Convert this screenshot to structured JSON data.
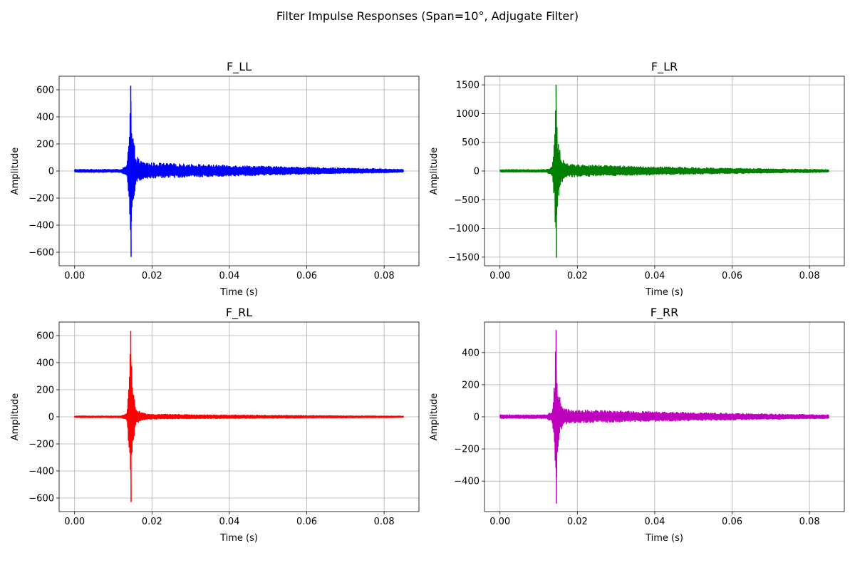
{
  "figure": {
    "title": "Filter Impulse Responses (Span=10°, Adjugate Filter)"
  },
  "chart_data": [
    {
      "type": "line",
      "title": "F_LL",
      "xlabel": "Time (s)",
      "ylabel": "Amplitude",
      "color": "#0000ff",
      "xlim": [
        -0.004,
        0.089
      ],
      "ylim": [
        -700,
        700
      ],
      "xticks": [
        0.0,
        0.02,
        0.04,
        0.06,
        0.08
      ],
      "xtick_labels": [
        "0.00",
        "0.02",
        "0.04",
        "0.06",
        "0.08"
      ],
      "yticks": [
        -600,
        -400,
        -200,
        0,
        200,
        400,
        600
      ],
      "ytick_labels": [
        "−600",
        "−400",
        "−200",
        "0",
        "200",
        "400",
        "600"
      ],
      "grid": true,
      "envelope": {
        "x": [
          0.0,
          0.012,
          0.0135,
          0.0142,
          0.0145,
          0.0148,
          0.0155,
          0.016,
          0.017,
          0.018,
          0.02,
          0.025,
          0.03,
          0.04,
          0.05,
          0.06,
          0.07,
          0.08,
          0.085
        ],
        "upper": [
          12,
          12,
          40,
          300,
          630,
          300,
          180,
          110,
          75,
          65,
          60,
          55,
          50,
          42,
          35,
          28,
          22,
          16,
          12
        ],
        "lower": [
          -10,
          -10,
          -40,
          -300,
          -635,
          -300,
          -160,
          -95,
          -70,
          -60,
          -55,
          -50,
          -45,
          -38,
          -30,
          -24,
          -18,
          -13,
          -10
        ]
      }
    },
    {
      "type": "line",
      "title": "F_LR",
      "xlabel": "Time (s)",
      "ylabel": "Amplitude",
      "color": "#008000",
      "xlim": [
        -0.004,
        0.089
      ],
      "ylim": [
        -1650,
        1650
      ],
      "xticks": [
        0.0,
        0.02,
        0.04,
        0.06,
        0.08
      ],
      "xtick_labels": [
        "0.00",
        "0.02",
        "0.04",
        "0.06",
        "0.08"
      ],
      "yticks": [
        -1500,
        -1000,
        -500,
        0,
        500,
        1000,
        1500
      ],
      "ytick_labels": [
        "−1500",
        "−1000",
        "−500",
        "0",
        "500",
        "1000",
        "1500"
      ],
      "grid": true,
      "envelope": {
        "x": [
          0.0,
          0.012,
          0.0135,
          0.0142,
          0.0145,
          0.0148,
          0.0155,
          0.016,
          0.017,
          0.018,
          0.02,
          0.025,
          0.03,
          0.04,
          0.05,
          0.06,
          0.07,
          0.08,
          0.085
        ],
        "upper": [
          25,
          25,
          80,
          700,
          1500,
          700,
          350,
          220,
          140,
          120,
          110,
          100,
          90,
          75,
          60,
          48,
          38,
          30,
          25
        ],
        "lower": [
          -20,
          -20,
          -80,
          -700,
          -1510,
          -700,
          -300,
          -200,
          -130,
          -110,
          -100,
          -90,
          -80,
          -68,
          -55,
          -44,
          -34,
          -26,
          -20
        ]
      }
    },
    {
      "type": "line",
      "title": "F_RL",
      "xlabel": "Time (s)",
      "ylabel": "Amplitude",
      "color": "#ff0000",
      "xlim": [
        -0.004,
        0.089
      ],
      "ylim": [
        -700,
        700
      ],
      "xticks": [
        0.0,
        0.02,
        0.04,
        0.06,
        0.08
      ],
      "xtick_labels": [
        "0.00",
        "0.02",
        "0.04",
        "0.06",
        "0.08"
      ],
      "yticks": [
        -600,
        -400,
        -200,
        0,
        200,
        400,
        600
      ],
      "ytick_labels": [
        "−600",
        "−400",
        "−200",
        "0",
        "200",
        "400",
        "600"
      ],
      "grid": true,
      "envelope": {
        "x": [
          0.0,
          0.012,
          0.0135,
          0.0142,
          0.0145,
          0.0148,
          0.0155,
          0.016,
          0.017,
          0.018,
          0.02,
          0.025,
          0.03,
          0.04,
          0.05,
          0.06,
          0.07,
          0.08,
          0.085
        ],
        "upper": [
          6,
          6,
          25,
          300,
          635,
          300,
          120,
          60,
          35,
          25,
          20,
          18,
          16,
          13,
          11,
          9,
          7,
          6,
          5
        ],
        "lower": [
          -6,
          -6,
          -25,
          -300,
          -630,
          -300,
          -110,
          -55,
          -30,
          -22,
          -18,
          -16,
          -14,
          -12,
          -10,
          -8,
          -7,
          -6,
          -5
        ]
      }
    },
    {
      "type": "line",
      "title": "F_RR",
      "xlabel": "Time (s)",
      "ylabel": "Amplitude",
      "color": "#bf00bf",
      "xlim": [
        -0.004,
        0.089
      ],
      "ylim": [
        -590,
        590
      ],
      "xticks": [
        0.0,
        0.02,
        0.04,
        0.06,
        0.08
      ],
      "xtick_labels": [
        "0.00",
        "0.02",
        "0.04",
        "0.06",
        "0.08"
      ],
      "yticks": [
        -400,
        -200,
        0,
        200,
        400
      ],
      "ytick_labels": [
        "−400",
        "−200",
        "0",
        "200",
        "400"
      ],
      "grid": true,
      "envelope": {
        "x": [
          0.0,
          0.012,
          0.0135,
          0.0142,
          0.0145,
          0.0148,
          0.0155,
          0.016,
          0.017,
          0.018,
          0.02,
          0.025,
          0.03,
          0.04,
          0.05,
          0.06,
          0.07,
          0.08,
          0.085
        ],
        "upper": [
          12,
          12,
          35,
          250,
          540,
          250,
          120,
          75,
          50,
          45,
          42,
          40,
          37,
          32,
          27,
          22,
          18,
          14,
          12
        ],
        "lower": [
          -10,
          -10,
          -35,
          -250,
          -540,
          -250,
          -110,
          -70,
          -45,
          -40,
          -38,
          -36,
          -33,
          -28,
          -24,
          -20,
          -16,
          -12,
          -10
        ]
      }
    }
  ]
}
